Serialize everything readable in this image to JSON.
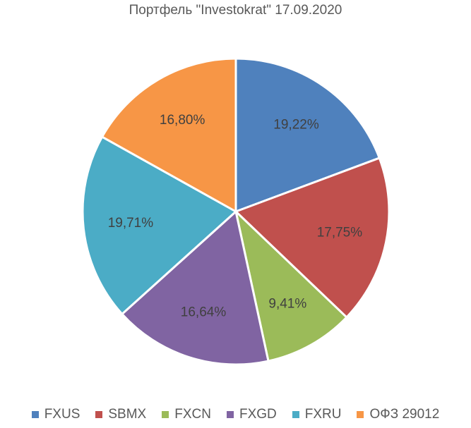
{
  "chart_data": {
    "type": "pie",
    "title": "Портфель \"Investokrat\" 17.09.2020",
    "slices": [
      {
        "name": "FXUS",
        "value": 19.22,
        "label": "19,22%",
        "color": "#4F81BD"
      },
      {
        "name": "SBMX",
        "value": 17.75,
        "label": "17,75%",
        "color": "#C0504D"
      },
      {
        "name": "FXCN",
        "value": 9.41,
        "label": "9,41%",
        "color": "#9BBB59"
      },
      {
        "name": "FXGD",
        "value": 16.64,
        "label": "16,64%",
        "color": "#8064A2"
      },
      {
        "name": "FXRU",
        "value": 19.71,
        "label": "19,71%",
        "color": "#4BACC6"
      },
      {
        "name": "ОФЗ 29012",
        "value": 16.8,
        "label": "16,80%",
        "color": "#F79646"
      }
    ],
    "legend_position": "bottom"
  }
}
